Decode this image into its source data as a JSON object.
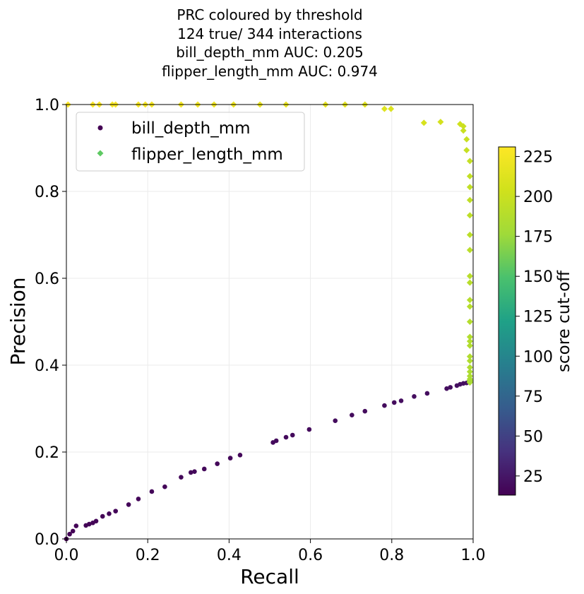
{
  "chart_data": {
    "type": "scatter",
    "title_lines": [
      "PRC coloured by threshold",
      "124 true/ 344 interactions",
      "bill_depth_mm AUC: 0.205",
      "flipper_length_mm AUC: 0.974"
    ],
    "xlabel": "Recall",
    "ylabel": "Precision",
    "xlim": [
      0,
      1
    ],
    "ylim": [
      0,
      1
    ],
    "xticks": [
      "0.0",
      "0.2",
      "0.4",
      "0.6",
      "0.8",
      "1.0"
    ],
    "yticks": [
      "0.0",
      "0.2",
      "0.4",
      "0.6",
      "0.8",
      "1.0"
    ],
    "grid": true,
    "legend_position": "upper-left",
    "colorbar": {
      "label": "score cut-off",
      "range": [
        13,
        231
      ],
      "ticks": [
        "25",
        "50",
        "75",
        "100",
        "125",
        "150",
        "175",
        "200",
        "225"
      ],
      "colormap": "viridis"
    },
    "series": [
      {
        "name": "bill_depth_mm",
        "marker": "circle",
        "legend_color": "#440154",
        "x": [
          0.0,
          0.008,
          0.016,
          0.024,
          0.048,
          0.056,
          0.065,
          0.073,
          0.089,
          0.105,
          0.121,
          0.153,
          0.177,
          0.21,
          0.242,
          0.282,
          0.306,
          0.315,
          0.339,
          0.371,
          0.403,
          0.427,
          0.508,
          0.516,
          0.54,
          0.556,
          0.597,
          0.661,
          0.702,
          0.734,
          0.782,
          0.806,
          0.823,
          0.855,
          0.887,
          0.935,
          0.944,
          0.96,
          0.968,
          0.976,
          0.984,
          0.992
        ],
        "y": [
          0.0,
          0.011,
          0.018,
          0.03,
          0.031,
          0.034,
          0.037,
          0.041,
          0.052,
          0.058,
          0.064,
          0.079,
          0.092,
          0.109,
          0.12,
          0.142,
          0.153,
          0.155,
          0.161,
          0.173,
          0.186,
          0.193,
          0.222,
          0.226,
          0.234,
          0.239,
          0.252,
          0.272,
          0.285,
          0.294,
          0.307,
          0.314,
          0.318,
          0.328,
          0.335,
          0.346,
          0.349,
          0.353,
          0.356,
          0.358,
          0.359,
          0.362
        ],
        "score": [
          13,
          14,
          14,
          15,
          15,
          15,
          15,
          15,
          15,
          16,
          16,
          16,
          16,
          16,
          16,
          17,
          17,
          17,
          17,
          17,
          17,
          17,
          18,
          18,
          18,
          18,
          18,
          19,
          19,
          19,
          19,
          19,
          20,
          20,
          20,
          20,
          21,
          21,
          21,
          21,
          21,
          22
        ]
      },
      {
        "name": "flipper_length_mm",
        "marker": "diamond",
        "legend_color": "#5ec962",
        "x": [
          0.004,
          0.065,
          0.081,
          0.113,
          0.121,
          0.177,
          0.194,
          0.21,
          0.282,
          0.323,
          0.363,
          0.411,
          0.476,
          0.54,
          0.637,
          0.685,
          0.734,
          0.782,
          0.798,
          0.879,
          0.92,
          0.968,
          0.976,
          0.976,
          0.984,
          0.984,
          0.992,
          0.992,
          0.992,
          0.992,
          0.992,
          0.992,
          0.992,
          0.992,
          0.992,
          0.992,
          0.992,
          0.992,
          0.992,
          0.992,
          0.992,
          0.992,
          0.992,
          0.992,
          0.992,
          0.992,
          0.992,
          0.992,
          0.992,
          0.992
        ],
        "y": [
          1.0,
          1.0,
          1.0,
          1.0,
          1.0,
          1.0,
          1.0,
          1.0,
          1.0,
          1.0,
          1.0,
          1.0,
          1.0,
          1.0,
          1.0,
          1.0,
          1.0,
          0.99,
          0.99,
          0.958,
          0.96,
          0.955,
          0.95,
          0.94,
          0.92,
          0.895,
          0.87,
          0.835,
          0.81,
          0.78,
          0.745,
          0.7,
          0.665,
          0.605,
          0.59,
          0.55,
          0.535,
          0.5,
          0.465,
          0.455,
          0.445,
          0.42,
          0.41,
          0.395,
          0.385,
          0.375,
          0.368,
          0.365,
          0.362,
          0.36
        ],
        "score": [
          231,
          230,
          229,
          228,
          228,
          227,
          227,
          226,
          225,
          224,
          223,
          222,
          220,
          219,
          217,
          215,
          214,
          212,
          211,
          208,
          206,
          203,
          201,
          200,
          199,
          198,
          197,
          196,
          195,
          194,
          193,
          192,
          191,
          190,
          190,
          189,
          189,
          188,
          187,
          187,
          186,
          186,
          185,
          185,
          184,
          184,
          183,
          183,
          182,
          182
        ]
      }
    ]
  }
}
